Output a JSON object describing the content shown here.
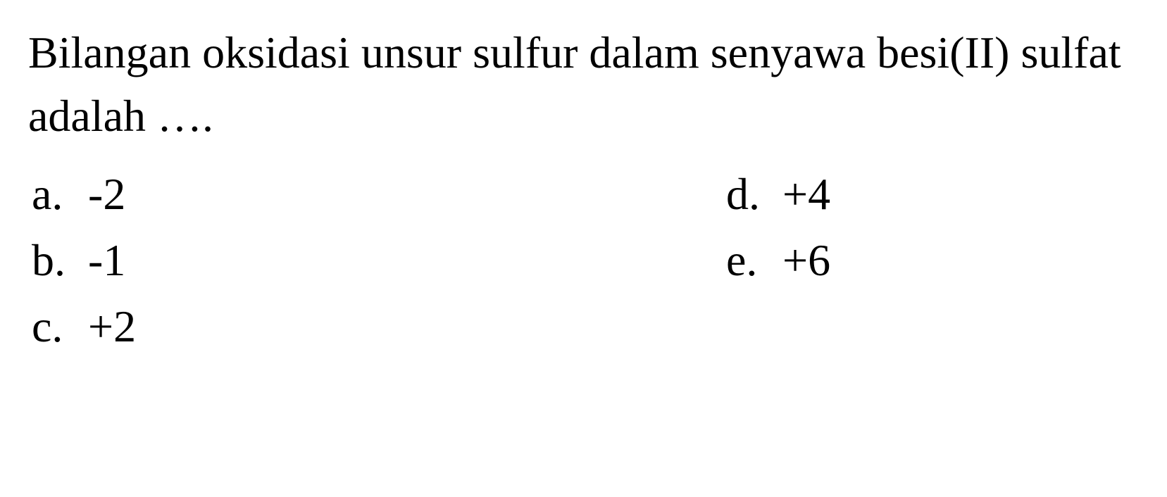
{
  "question": {
    "text": "Bilangan oksidasi unsur sulfur dalam senyawa besi(II) sulfat adalah …."
  },
  "options": [
    {
      "letter": "a.",
      "value": "-2"
    },
    {
      "letter": "b.",
      "value": "-1"
    },
    {
      "letter": "c.",
      "value": "+2"
    },
    {
      "letter": "d.",
      "value": "+4"
    },
    {
      "letter": "e.",
      "value": "+6"
    }
  ],
  "styling": {
    "background_color": "#ffffff",
    "text_color": "#000000",
    "font_family": "Times New Roman",
    "question_fontsize": 64,
    "option_fontsize": 64
  }
}
